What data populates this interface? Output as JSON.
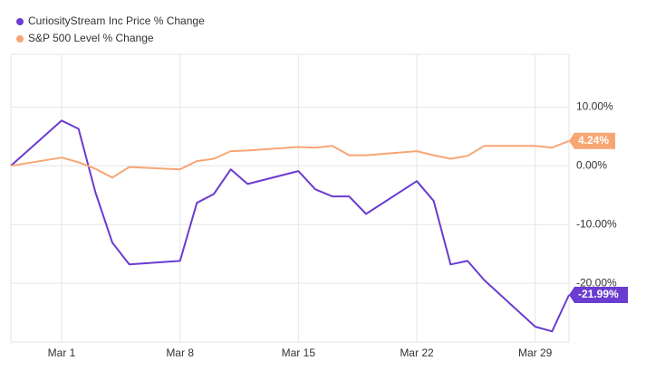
{
  "chart_data": {
    "type": "line",
    "x": [
      "Feb 26",
      "Mar 1",
      "Mar 2",
      "Mar 3",
      "Mar 4",
      "Mar 5",
      "Mar 8",
      "Mar 9",
      "Mar 10",
      "Mar 11",
      "Mar 12",
      "Mar 15",
      "Mar 16",
      "Mar 17",
      "Mar 18",
      "Mar 19",
      "Mar 22",
      "Mar 23",
      "Mar 24",
      "Mar 25",
      "Mar 26",
      "Mar 29",
      "Mar 30",
      "Mar 31"
    ],
    "xlim": [
      "Feb 26",
      "Mar 31"
    ],
    "xticks": [
      "Mar 1",
      "Mar 8",
      "Mar 15",
      "Mar 22",
      "Mar 29"
    ],
    "ylim": [
      -30,
      19
    ],
    "yticks": [
      {
        "value": -20,
        "label": "-20.00%"
      },
      {
        "value": -10,
        "label": "-10.00%"
      },
      {
        "value": 0,
        "label": "0.00%"
      },
      {
        "value": 10,
        "label": "10.00%"
      }
    ],
    "grid": true,
    "series": [
      {
        "name": "CuriosityStream Inc Price % Change",
        "color": "#6a3ccf",
        "values": [
          0,
          7.7,
          6.3,
          -4.5,
          -13.1,
          -16.8,
          -16.2,
          -6.3,
          -4.8,
          -0.6,
          -3.1,
          -0.9,
          -4.0,
          -5.2,
          -5.2,
          -8.2,
          -2.6,
          -6.0,
          -16.8,
          -16.2,
          -19.5,
          -27.4,
          -28.2,
          -21.99
        ],
        "end_label": "-21.99%"
      },
      {
        "name": "S&P 500 Level % Change",
        "color": "#f7a673",
        "values": [
          0,
          1.4,
          0.6,
          -0.5,
          -2.0,
          -0.2,
          -0.6,
          0.8,
          1.2,
          2.5,
          2.6,
          3.2,
          3.1,
          3.4,
          1.8,
          1.8,
          2.5,
          1.8,
          1.2,
          1.7,
          3.4,
          3.4,
          3.1,
          4.24
        ],
        "end_label": "4.24%"
      }
    ]
  }
}
